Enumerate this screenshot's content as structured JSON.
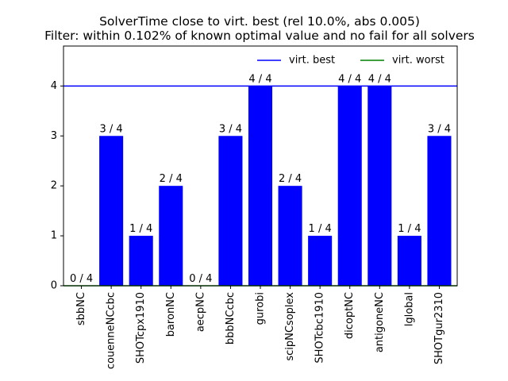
{
  "chart_data": {
    "type": "bar",
    "title": [
      "SolverTime close to virt. best (rel 10.0%, abs 0.005)",
      "Filter: within 0.102% of known optimal value and no fail for all solvers"
    ],
    "categories": [
      "sbbNC",
      "couenneNCcbc",
      "SHOTcpx1910",
      "baronNC",
      "aecpNC",
      "bbbNCcbc",
      "gurobi",
      "scipNCsoplex",
      "SHOTcbc1910",
      "dicoptNC",
      "antigoneNC",
      "lglobal",
      "SHOTgur2310"
    ],
    "values": [
      0,
      3,
      1,
      2,
      0,
      3,
      4,
      2,
      1,
      4,
      4,
      1,
      3
    ],
    "data_labels": [
      "0 / 4",
      "3 / 4",
      "1 / 4",
      "2 / 4",
      "0 / 4",
      "3 / 4",
      "4 / 4",
      "2 / 4",
      "1 / 4",
      "4 / 4",
      "4 / 4",
      "1 / 4",
      "3 / 4"
    ],
    "bar_color": "#0000ff",
    "ylim": [
      0,
      4.8
    ],
    "yticks": [
      0,
      1,
      2,
      3,
      4
    ],
    "reference_lines": [
      {
        "name": "virt. best",
        "value": 4,
        "color": "#0000ff"
      },
      {
        "name": "virt. worst",
        "value": 0,
        "color": "#008000"
      }
    ],
    "legend_position": "top-right",
    "grid": false
  }
}
